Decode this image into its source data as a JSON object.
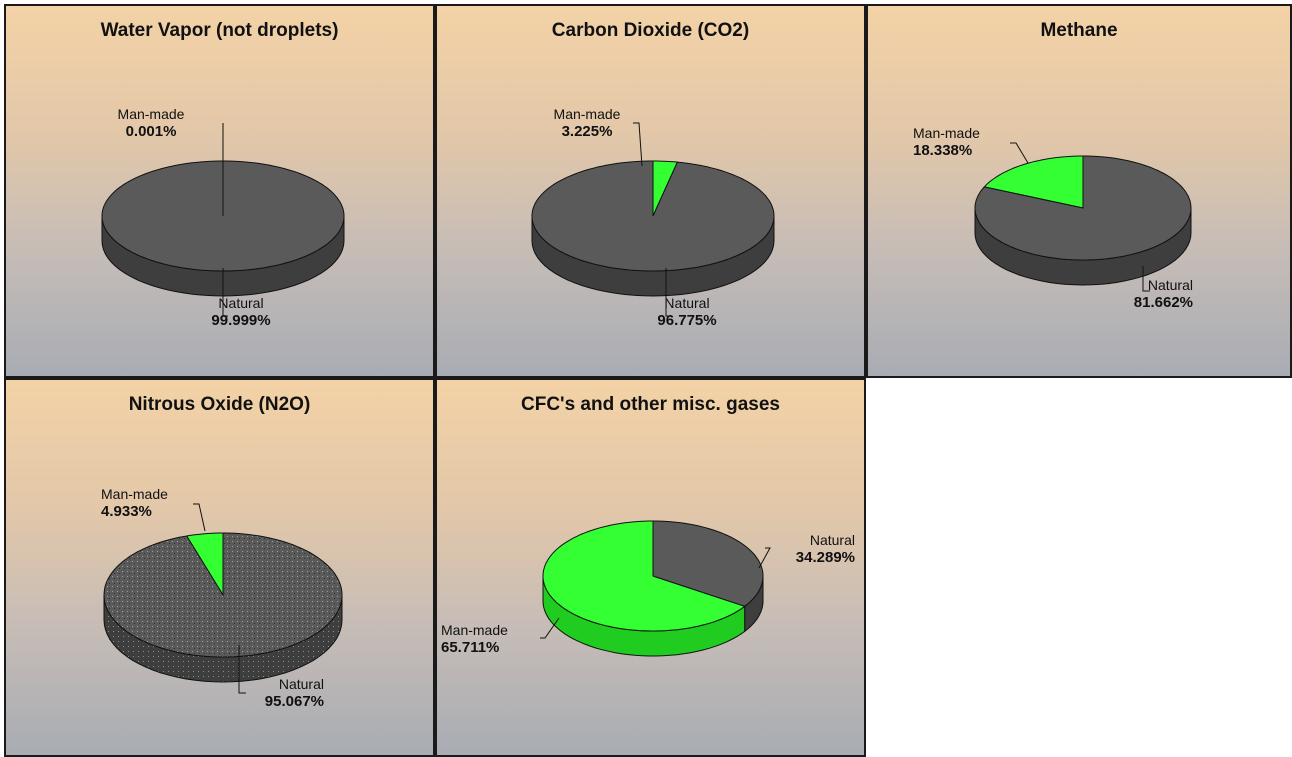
{
  "colors": {
    "natural": "#5a5a5a",
    "natural_side": "#3e3e3e",
    "man_made": "#33ff33",
    "man_made_side": "#1fcc1f",
    "outline": "#111111"
  },
  "chart_data": [
    {
      "type": "pie",
      "title": "Water Vapor (not droplets)",
      "slices": [
        {
          "label": "Man-made",
          "value": 0.001,
          "value_text": "0.001%"
        },
        {
          "label": "Natural",
          "value": 99.999,
          "value_text": "99.999%"
        }
      ]
    },
    {
      "type": "pie",
      "title": "Carbon Dioxide (CO2)",
      "slices": [
        {
          "label": "Man-made",
          "value": 3.225,
          "value_text": "3.225%"
        },
        {
          "label": "Natural",
          "value": 96.775,
          "value_text": "96.775%"
        }
      ]
    },
    {
      "type": "pie",
      "title": "Methane",
      "slices": [
        {
          "label": "Man-made",
          "value": 18.338,
          "value_text": "18.338%"
        },
        {
          "label": "Natural",
          "value": 81.662,
          "value_text": "81.662%"
        }
      ]
    },
    {
      "type": "pie",
      "title": "Nitrous Oxide (N2O)",
      "slices": [
        {
          "label": "Man-made",
          "value": 4.933,
          "value_text": "4.933%"
        },
        {
          "label": "Natural",
          "value": 95.067,
          "value_text": "95.067%"
        }
      ]
    },
    {
      "type": "pie",
      "title": "CFC's and other misc. gases",
      "slices": [
        {
          "label": "Man-made",
          "value": 65.711,
          "value_text": "65.711%"
        },
        {
          "label": "Natural",
          "value": 34.289,
          "value_text": "34.289%"
        }
      ]
    }
  ]
}
